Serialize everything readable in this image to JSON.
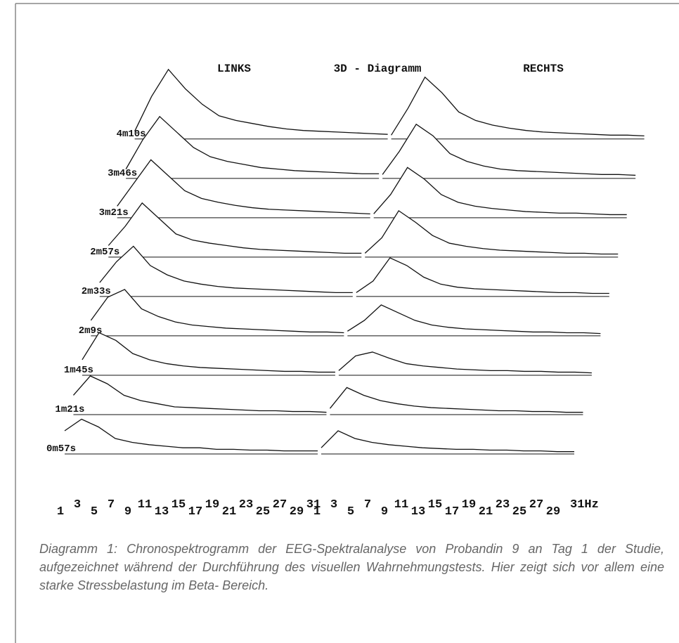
{
  "chart_data": {
    "type": "waterfall",
    "title": "3D - Diagramm",
    "categories": [
      "0m57s",
      "1m21s",
      "1m45s",
      "2m9s",
      "2m33s",
      "2m57s",
      "3m21s",
      "3m46s",
      "4m10s"
    ],
    "ylim": [
      0,
      100
    ],
    "panels": [
      {
        "title": "LINKS",
        "x": [
          1,
          3,
          5,
          7,
          9,
          11,
          13,
          15,
          17,
          19,
          21,
          23,
          25,
          27,
          29,
          31
        ],
        "xlim": [
          1,
          31
        ],
        "xticks": [
          1,
          3,
          5,
          7,
          9,
          11,
          13,
          15,
          17,
          19,
          21,
          23,
          25,
          27,
          29,
          31
        ],
        "values": [
          [
            30,
            45,
            35,
            20,
            15,
            12,
            10,
            8,
            8,
            6,
            6,
            5,
            5,
            4,
            4,
            4
          ],
          [
            25,
            50,
            40,
            25,
            18,
            14,
            10,
            9,
            8,
            7,
            6,
            5,
            5,
            4,
            4,
            3
          ],
          [
            20,
            55,
            45,
            28,
            20,
            15,
            12,
            10,
            9,
            8,
            7,
            6,
            5,
            5,
            4,
            4
          ],
          [
            20,
            50,
            60,
            35,
            25,
            18,
            14,
            12,
            10,
            9,
            8,
            7,
            6,
            5,
            5,
            4
          ],
          [
            18,
            45,
            65,
            40,
            28,
            20,
            16,
            13,
            11,
            10,
            9,
            8,
            7,
            6,
            5,
            5
          ],
          [
            15,
            40,
            70,
            50,
            30,
            22,
            18,
            15,
            12,
            10,
            9,
            8,
            7,
            6,
            5,
            5
          ],
          [
            15,
            45,
            75,
            55,
            35,
            25,
            20,
            16,
            13,
            11,
            10,
            9,
            8,
            7,
            6,
            5
          ],
          [
            12,
            50,
            80,
            60,
            40,
            28,
            22,
            18,
            14,
            12,
            10,
            9,
            8,
            7,
            6,
            6
          ],
          [
            10,
            55,
            90,
            65,
            45,
            30,
            24,
            20,
            16,
            13,
            11,
            10,
            9,
            8,
            7,
            6
          ]
        ]
      },
      {
        "title": "RECHTS",
        "x": [
          1,
          3,
          5,
          7,
          9,
          11,
          13,
          15,
          17,
          19,
          21,
          23,
          25,
          27,
          29,
          31
        ],
        "xlim": [
          1,
          31
        ],
        "xticks": [
          1,
          3,
          5,
          7,
          9,
          11,
          13,
          15,
          17,
          19,
          21,
          23,
          25,
          27,
          29,
          {
            "value": 31,
            "label": "31Hz"
          }
        ],
        "values": [
          [
            8,
            30,
            20,
            15,
            12,
            10,
            8,
            7,
            6,
            6,
            5,
            5,
            4,
            4,
            3,
            3
          ],
          [
            8,
            35,
            25,
            18,
            14,
            11,
            9,
            8,
            7,
            6,
            5,
            5,
            4,
            4,
            3,
            3
          ],
          [
            6,
            25,
            30,
            22,
            15,
            12,
            10,
            8,
            7,
            6,
            6,
            5,
            5,
            4,
            4,
            3
          ],
          [
            6,
            20,
            40,
            30,
            20,
            14,
            11,
            9,
            8,
            7,
            6,
            5,
            5,
            4,
            4,
            3
          ],
          [
            5,
            20,
            50,
            40,
            25,
            16,
            12,
            10,
            9,
            8,
            7,
            6,
            5,
            5,
            4,
            4
          ],
          [
            5,
            25,
            60,
            45,
            28,
            18,
            14,
            11,
            9,
            8,
            7,
            6,
            5,
            5,
            4,
            4
          ],
          [
            5,
            30,
            65,
            50,
            30,
            20,
            15,
            12,
            10,
            8,
            7,
            6,
            6,
            5,
            4,
            4
          ],
          [
            5,
            35,
            70,
            55,
            32,
            22,
            16,
            12,
            10,
            9,
            8,
            7,
            6,
            5,
            5,
            4
          ],
          [
            5,
            40,
            80,
            60,
            35,
            24,
            18,
            14,
            11,
            9,
            8,
            7,
            6,
            5,
            5,
            4
          ]
        ]
      }
    ]
  },
  "caption": "Diagramm 1: Chronospektrogramm der EEG-Spektralanalyse von Probandin 9 an Tag 1 der Studie, aufgezeichnet während der Durchführung des visuellen Wahrnehmungstests. Hier zeigt sich vor allem eine starke Stressbelastung im Beta- Bereich."
}
